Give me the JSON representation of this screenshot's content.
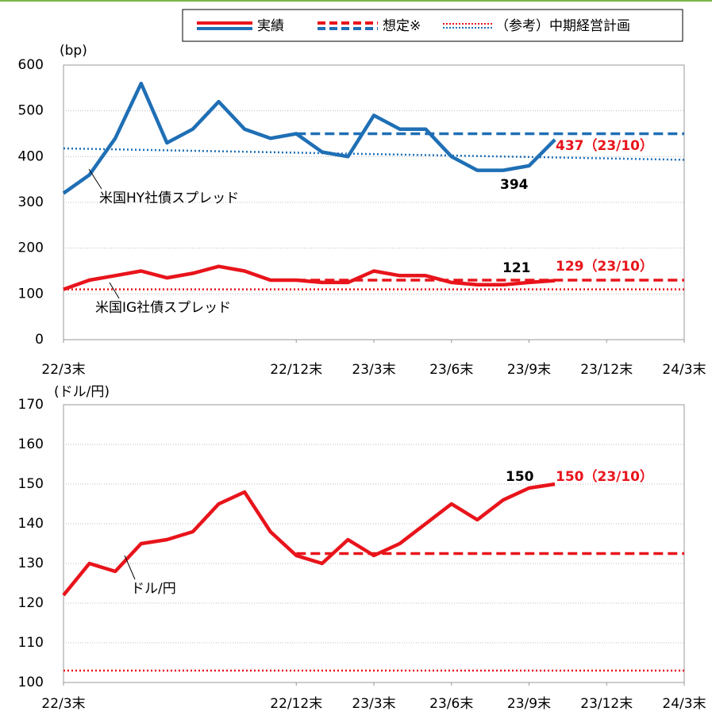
{
  "legend": {
    "items": [
      "実績",
      "想定※",
      "（参考）中期経営計画"
    ]
  },
  "chart_data": [
    {
      "type": "line",
      "y_label": "(bp)",
      "xlim": [
        "2022-03",
        "2024-03"
      ],
      "xticks": [
        {
          "value": "2022-03",
          "label": "22/3末"
        },
        {
          "value": "2022-12",
          "label": "22/12末"
        },
        {
          "value": "2023-03",
          "label": "23/3末"
        },
        {
          "value": "2023-06",
          "label": "23/6末"
        },
        {
          "value": "2023-09",
          "label": "23/9末"
        },
        {
          "value": "2023-12",
          "label": "23/12末"
        },
        {
          "value": "2024-03",
          "label": "24/3末"
        }
      ],
      "ylim": [
        0,
        600
      ],
      "yticks": [
        0,
        100,
        200,
        300,
        400,
        500,
        600
      ],
      "grid": true,
      "series": [
        {
          "name": "米国HY社債スプレッド",
          "color": "#1f6fb5",
          "style": "solid",
          "x": [
            "2022-03",
            "2022-04",
            "2022-05",
            "2022-06",
            "2022-07",
            "2022-08",
            "2022-09",
            "2022-10",
            "2022-11",
            "2022-12",
            "2023-01",
            "2023-02",
            "2023-03",
            "2023-04",
            "2023-05",
            "2023-06",
            "2023-07",
            "2023-08",
            "2023-09",
            "2023-10"
          ],
          "values": [
            320,
            360,
            440,
            560,
            430,
            460,
            520,
            460,
            440,
            450,
            410,
            400,
            490,
            460,
            460,
            400,
            370,
            370,
            380,
            437
          ]
        },
        {
          "color": "#1f6fb5",
          "style": "dashed",
          "x": [
            "2022-12",
            "2024-03"
          ],
          "values": [
            450,
            450
          ]
        },
        {
          "color": "#1f6fb5",
          "style": "dotted",
          "x": [
            "2022-03",
            "2024-03"
          ],
          "values": [
            418,
            393
          ]
        },
        {
          "name": "米国IG社債スプレッド",
          "color": "#e8141b",
          "style": "solid",
          "x": [
            "2022-03",
            "2022-04",
            "2022-05",
            "2022-06",
            "2022-07",
            "2022-08",
            "2022-09",
            "2022-10",
            "2022-11",
            "2022-12",
            "2023-01",
            "2023-02",
            "2023-03",
            "2023-04",
            "2023-05",
            "2023-06",
            "2023-07",
            "2023-08",
            "2023-09",
            "2023-10"
          ],
          "values": [
            110,
            130,
            140,
            150,
            135,
            145,
            160,
            150,
            130,
            130,
            125,
            125,
            150,
            140,
            140,
            125,
            120,
            120,
            125,
            129
          ]
        },
        {
          "color": "#e8141b",
          "style": "dashed",
          "x": [
            "2022-12",
            "2024-03"
          ],
          "values": [
            130,
            130
          ]
        },
        {
          "color": "#e8141b",
          "style": "dotted",
          "x": [
            "2022-03",
            "2024-03"
          ],
          "values": [
            110,
            110
          ]
        }
      ],
      "annotations": [
        "394",
        "437（23/10）",
        "121",
        "129（23/10）"
      ]
    },
    {
      "type": "line",
      "y_label": "(ドル/円)",
      "xlim": [
        "2022-03",
        "2024-03"
      ],
      "xticks": [
        {
          "value": "2022-03",
          "label": "22/3末"
        },
        {
          "value": "2022-12",
          "label": "22/12末"
        },
        {
          "value": "2023-03",
          "label": "23/3末"
        },
        {
          "value": "2023-06",
          "label": "23/6末"
        },
        {
          "value": "2023-09",
          "label": "23/9末"
        },
        {
          "value": "2023-12",
          "label": "23/12末"
        },
        {
          "value": "2024-03",
          "label": "24/3末"
        }
      ],
      "ylim": [
        100,
        170
      ],
      "yticks": [
        100,
        110,
        120,
        130,
        140,
        150,
        160,
        170
      ],
      "grid": true,
      "series": [
        {
          "name": "ドル/円",
          "color": "#e8141b",
          "style": "solid",
          "x": [
            "2022-03",
            "2022-04",
            "2022-05",
            "2022-06",
            "2022-07",
            "2022-08",
            "2022-09",
            "2022-10",
            "2022-11",
            "2022-12",
            "2023-01",
            "2023-02",
            "2023-03",
            "2023-04",
            "2023-05",
            "2023-06",
            "2023-07",
            "2023-08",
            "2023-09",
            "2023-10"
          ],
          "values": [
            122,
            130,
            128,
            135,
            136,
            138,
            145,
            148,
            138,
            132,
            130,
            136,
            132,
            135,
            140,
            145,
            141,
            146,
            149,
            150
          ]
        },
        {
          "color": "#e8141b",
          "style": "dashed",
          "x": [
            "2022-12",
            "2024-03"
          ],
          "values": [
            132.5,
            132.5
          ]
        },
        {
          "color": "#e8141b",
          "style": "dotted",
          "x": [
            "2022-03",
            "2024-03"
          ],
          "values": [
            103,
            103
          ]
        }
      ],
      "annotations": [
        "150",
        "150（23/10）"
      ]
    }
  ]
}
